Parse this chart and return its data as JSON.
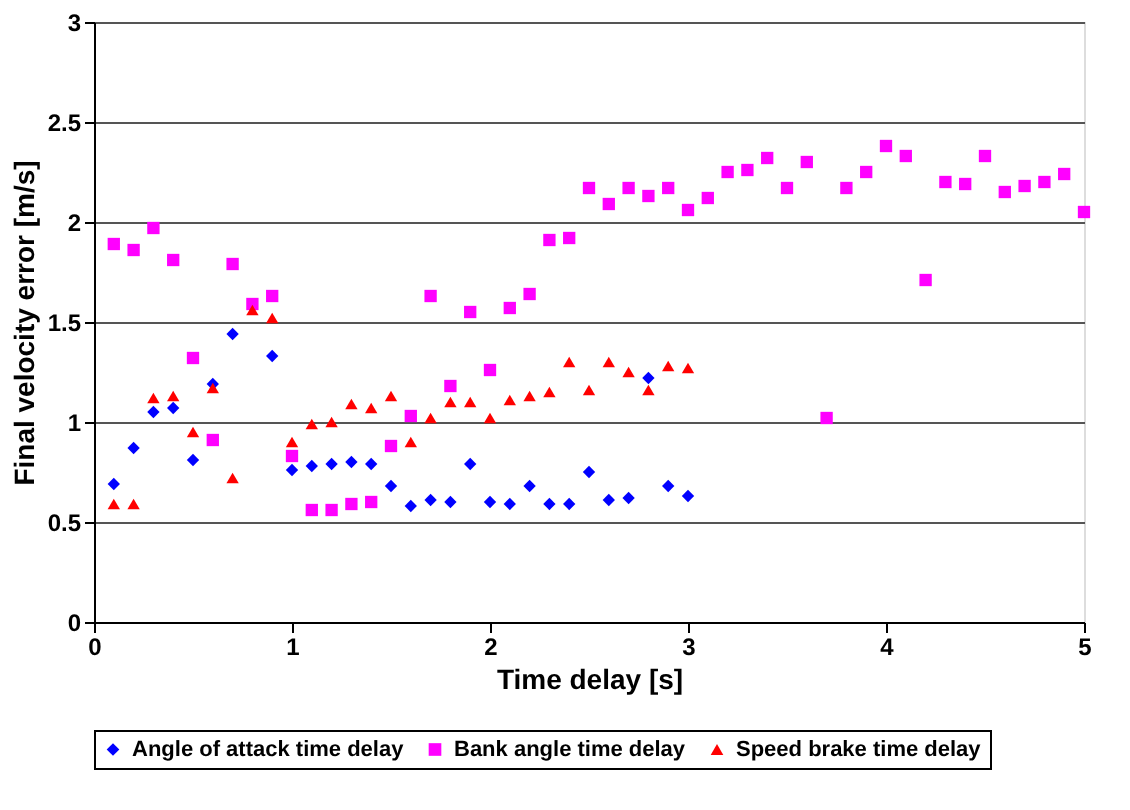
{
  "chart_data": {
    "type": "scatter",
    "xlabel": "Time delay [s]",
    "ylabel": "Final velocity error [m/s]",
    "xlim": [
      0,
      5
    ],
    "xticks": [
      0,
      1,
      2,
      3,
      4,
      5
    ],
    "ylim": [
      0,
      3
    ],
    "yticks": [
      0,
      0.5,
      1,
      1.5,
      2,
      2.5,
      3
    ],
    "grid": "y",
    "legend": "bottom",
    "series": [
      {
        "name": "Angle of attack time delay",
        "color": "#0000ff",
        "marker": "diamond",
        "x": [
          0.1,
          0.2,
          0.3,
          0.4,
          0.5,
          0.6,
          0.7,
          0.9,
          1.0,
          1.1,
          1.2,
          1.3,
          1.4,
          1.5,
          1.6,
          1.7,
          1.8,
          1.9,
          2.0,
          2.1,
          2.2,
          2.3,
          2.4,
          2.5,
          2.6,
          2.7,
          2.8,
          2.9,
          3.0
        ],
        "values": [
          0.69,
          0.87,
          1.05,
          1.07,
          0.81,
          1.19,
          1.44,
          1.33,
          0.76,
          0.78,
          0.79,
          0.8,
          0.79,
          0.68,
          0.58,
          0.61,
          0.6,
          0.79,
          0.6,
          0.59,
          0.68,
          0.59,
          0.59,
          0.75,
          0.61,
          0.62,
          1.22,
          0.68,
          0.63
        ]
      },
      {
        "name": "Bank angle time delay",
        "color": "#ff00ff",
        "marker": "square",
        "x": [
          0.1,
          0.2,
          0.3,
          0.4,
          0.5,
          0.6,
          0.7,
          0.8,
          0.9,
          1.0,
          1.1,
          1.2,
          1.3,
          1.4,
          1.5,
          1.6,
          1.7,
          1.8,
          1.9,
          2.0,
          2.1,
          2.2,
          2.3,
          2.4,
          2.5,
          2.6,
          2.7,
          2.8,
          2.9,
          3.0,
          3.1,
          3.2,
          3.3,
          3.4,
          3.5,
          3.6,
          3.7,
          3.8,
          3.9,
          4.0,
          4.1,
          4.2,
          4.3,
          4.4,
          4.5,
          4.6,
          4.7,
          4.8,
          4.9,
          5.0
        ],
        "values": [
          1.89,
          1.86,
          1.97,
          1.81,
          1.32,
          0.91,
          1.79,
          1.59,
          1.63,
          0.83,
          0.56,
          0.56,
          0.59,
          0.6,
          0.88,
          1.03,
          1.63,
          1.18,
          1.55,
          1.26,
          1.57,
          1.64,
          1.91,
          1.92,
          2.17,
          2.09,
          2.17,
          2.13,
          2.17,
          2.06,
          2.12,
          2.25,
          2.26,
          2.32,
          2.17,
          2.3,
          1.02,
          2.17,
          2.25,
          2.38,
          2.33,
          1.71,
          2.2,
          2.19,
          2.33,
          2.15,
          2.18,
          2.2,
          2.24,
          2.05
        ]
      },
      {
        "name": "Speed brake time delay",
        "color": "#ff0000",
        "marker": "triangle",
        "x": [
          0.1,
          0.2,
          0.3,
          0.4,
          0.5,
          0.6,
          0.7,
          0.8,
          0.9,
          1.0,
          1.1,
          1.2,
          1.3,
          1.4,
          1.5,
          1.6,
          1.7,
          1.8,
          1.9,
          2.0,
          2.1,
          2.2,
          2.3,
          2.4,
          2.5,
          2.6,
          2.7,
          2.8,
          2.9,
          3.0
        ],
        "values": [
          0.59,
          0.59,
          1.12,
          1.13,
          0.95,
          1.17,
          0.72,
          1.56,
          1.52,
          0.9,
          0.99,
          1.0,
          1.09,
          1.07,
          1.13,
          0.9,
          1.02,
          1.1,
          1.1,
          1.02,
          1.11,
          1.13,
          1.15,
          1.3,
          1.16,
          1.3,
          1.25,
          1.16,
          1.28,
          1.27
        ]
      }
    ]
  }
}
